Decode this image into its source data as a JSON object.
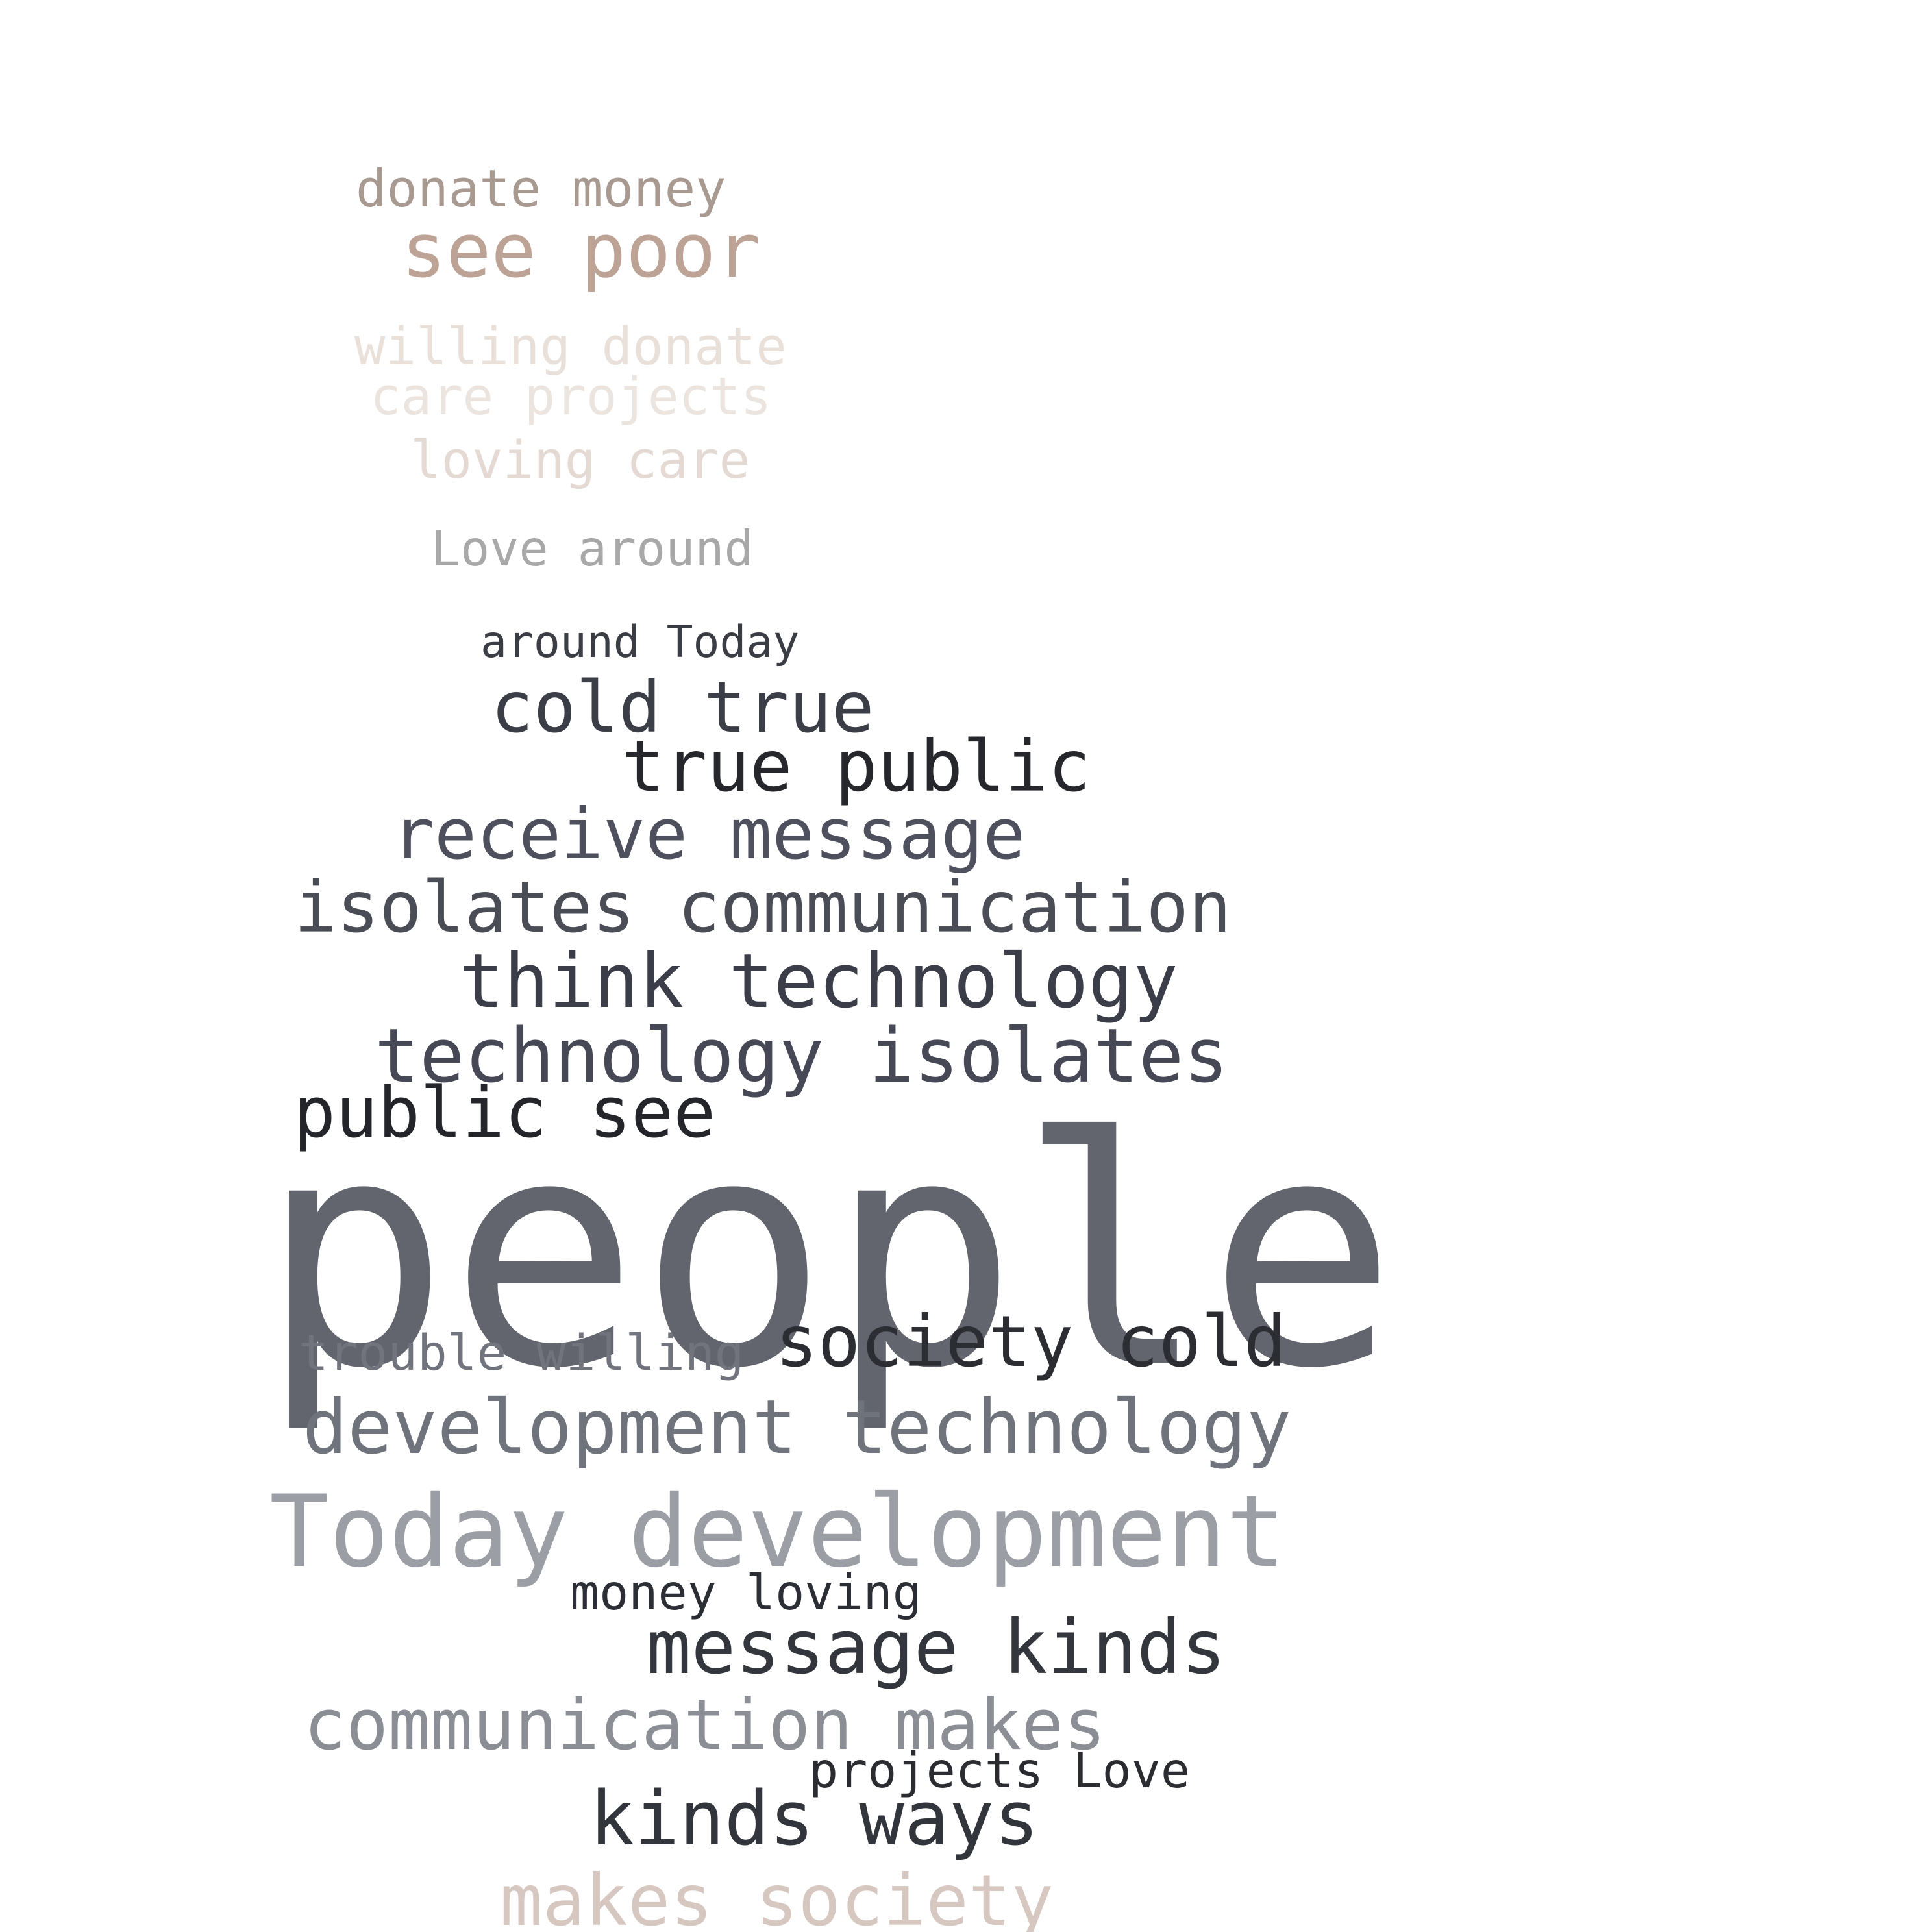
{
  "words": [
    {
      "text": "donate money",
      "color": "#a89a91"
    },
    {
      "text": "see poor",
      "color": "#bda395"
    },
    {
      "text": "willing donate",
      "color": "#e9e0da"
    },
    {
      "text": "care projects",
      "color": "#ece4de"
    },
    {
      "text": "loving care",
      "color": "#e4dad3"
    },
    {
      "text": "Love around",
      "color": "#a9a8a8"
    },
    {
      "text": "around Today",
      "color": "#3b3d45"
    },
    {
      "text": "cold true",
      "color": "#3c3e47"
    },
    {
      "text": "true public",
      "color": "#26272c"
    },
    {
      "text": "receive message",
      "color": "#4e505d"
    },
    {
      "text": "isolates communication",
      "color": "#4a4c56"
    },
    {
      "text": "think technology",
      "color": "#3b3d48"
    },
    {
      "text": "technology isolates",
      "color": "#464855"
    },
    {
      "text": "public see",
      "color": "#23252a"
    },
    {
      "text": "people",
      "color": "#62656d"
    },
    {
      "text": "trouble willing",
      "color": "#71747c"
    },
    {
      "text": "society cold",
      "color": "#2b2d33"
    },
    {
      "text": "development technology",
      "color": "#6f737b"
    },
    {
      "text": "Today development",
      "color": "#9b9ea5"
    },
    {
      "text": "money loving",
      "color": "#2c2e35"
    },
    {
      "text": "message kinds",
      "color": "#34363e"
    },
    {
      "text": "communication makes",
      "color": "#8b8e95"
    },
    {
      "text": "projects Love",
      "color": "#2a2c32"
    },
    {
      "text": "kinds ways",
      "color": "#33353c"
    },
    {
      "text": "makes society",
      "color": "#d6c8c0"
    }
  ]
}
